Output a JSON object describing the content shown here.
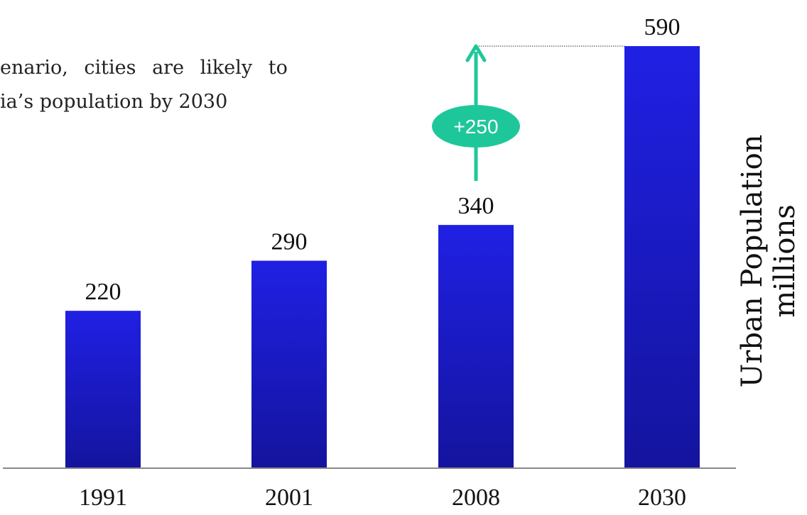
{
  "caption": {
    "line1": "enario, cities are likely to",
    "line2": "ia’s population by 2030"
  },
  "chart_data": {
    "type": "bar",
    "categories": [
      "1991",
      "2001",
      "2008",
      "2030"
    ],
    "values": [
      220,
      290,
      340,
      590
    ],
    "title": "",
    "xlabel": "",
    "ylabel": "Urban Population",
    "ylabel_units": "millions",
    "ylim": [
      0,
      590
    ],
    "grid": false,
    "legend": "none",
    "annotation": {
      "text": "+250",
      "from_category": "2008",
      "to_category": "2030"
    }
  },
  "colors": {
    "bar_top": "#2020e4",
    "bar_bottom": "#14149e",
    "annotation": "#1ec79a",
    "axis": "#888888"
  }
}
